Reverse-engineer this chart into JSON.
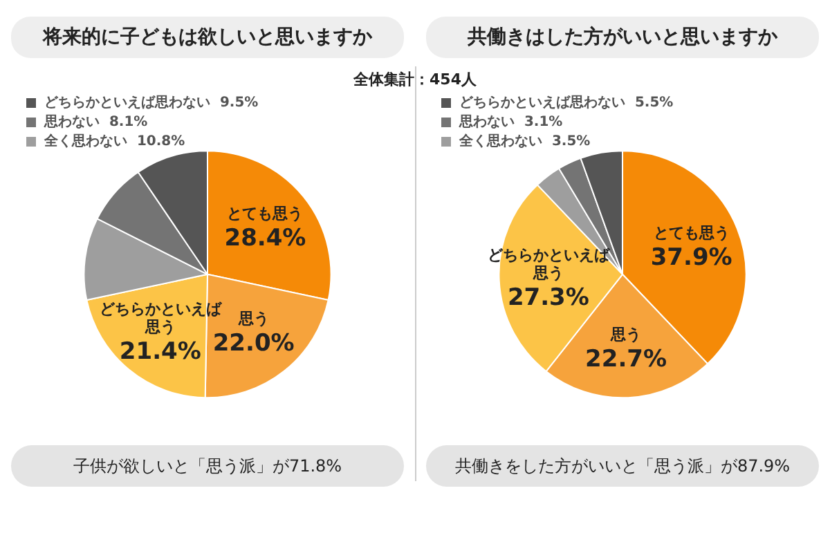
{
  "chart_data": [
    {
      "type": "pie",
      "title": "将来的に子どもは欲しいと思いますか",
      "legend": "top left",
      "categories": [
        "とても思う",
        "思う",
        "どちらかといえば思う",
        "全く思わない",
        "思わない",
        "どちらかといえば思わない"
      ],
      "values": [
        28.4,
        22.0,
        21.4,
        10.8,
        8.1,
        9.5
      ],
      "value_labels": [
        "28.4%",
        "22.0%",
        "21.4%",
        "10.8%",
        "8.1%",
        "9.5%"
      ],
      "colors": [
        "#f58a07",
        "#f6a33c",
        "#fcc447",
        "#9e9e9e",
        "#747474",
        "#555555"
      ],
      "annotations": [
        "全体集計：454人",
        "子供が欲しいと「思う派」が71.8%"
      ]
    },
    {
      "type": "pie",
      "title": "共働きはした方がいいと思いますか",
      "legend": "top left",
      "categories": [
        "とても思う",
        "思う",
        "どちらかといえば思う",
        "全く思わない",
        "思わない",
        "どちらかといえば思わない"
      ],
      "values": [
        37.9,
        22.7,
        27.3,
        3.5,
        3.1,
        5.5
      ],
      "value_labels": [
        "37.9%",
        "22.7%",
        "27.3%",
        "3.5%",
        "3.1%",
        "5.5%"
      ],
      "colors": [
        "#f58a07",
        "#f6a33c",
        "#fcc447",
        "#9e9e9e",
        "#747474",
        "#555555"
      ],
      "annotations": [
        "共働きをした方がいいと「思う派」が87.9%"
      ]
    }
  ]
}
